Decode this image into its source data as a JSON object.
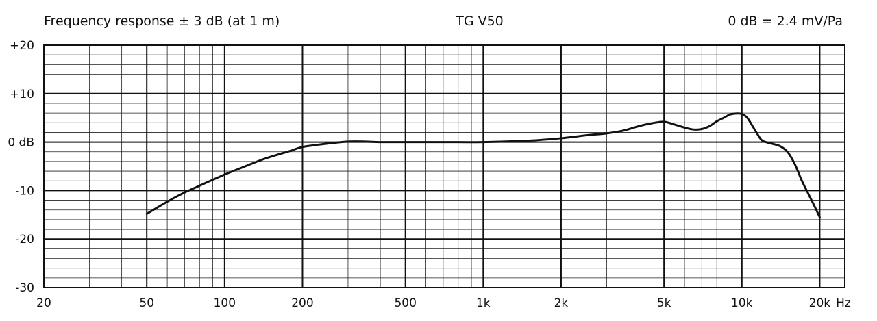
{
  "header": {
    "left": "Frequency response ± 3 dB (at 1 m)",
    "center": "TG V50",
    "right": "0 dB = 2.4 mV/Pa"
  },
  "chart_data": {
    "type": "line",
    "title": "TG V50",
    "xscale": "log",
    "xlim": [
      20,
      25000
    ],
    "ylim": [
      -30,
      20
    ],
    "grid": true,
    "x_ticks": [
      {
        "value": 20,
        "label": "20"
      },
      {
        "value": 50,
        "label": "50"
      },
      {
        "value": 100,
        "label": "100"
      },
      {
        "value": 200,
        "label": "200"
      },
      {
        "value": 500,
        "label": "500"
      },
      {
        "value": 1000,
        "label": "1k"
      },
      {
        "value": 2000,
        "label": "2k"
      },
      {
        "value": 5000,
        "label": "5k"
      },
      {
        "value": 10000,
        "label": "10k"
      },
      {
        "value": 20000,
        "label": "20k"
      }
    ],
    "x_unit_label": "Hz",
    "y_ticks": [
      {
        "value": 20,
        "label": "+20"
      },
      {
        "value": 10,
        "label": "+10"
      },
      {
        "value": 0,
        "label": "0 dB"
      },
      {
        "value": -10,
        "label": "-10"
      },
      {
        "value": -20,
        "label": "-20"
      },
      {
        "value": -30,
        "label": "-30"
      }
    ],
    "series": [
      {
        "color": "#111111",
        "points": [
          [
            50,
            -14.8
          ],
          [
            60,
            -12.3
          ],
          [
            70,
            -10.4
          ],
          [
            80,
            -9.0
          ],
          [
            100,
            -6.7
          ],
          [
            120,
            -5.0
          ],
          [
            140,
            -3.6
          ],
          [
            160,
            -2.6
          ],
          [
            180,
            -1.8
          ],
          [
            200,
            -1.0
          ],
          [
            250,
            -0.3
          ],
          [
            300,
            0.1
          ],
          [
            350,
            0.1
          ],
          [
            400,
            0.0
          ],
          [
            500,
            0.0
          ],
          [
            700,
            0.0
          ],
          [
            1000,
            0.0
          ],
          [
            1500,
            0.3
          ],
          [
            2000,
            0.8
          ],
          [
            2500,
            1.4
          ],
          [
            3000,
            1.8
          ],
          [
            3500,
            2.4
          ],
          [
            4000,
            3.3
          ],
          [
            4500,
            3.9
          ],
          [
            5000,
            4.2
          ],
          [
            5500,
            3.6
          ],
          [
            6000,
            3.0
          ],
          [
            6500,
            2.6
          ],
          [
            7000,
            2.7
          ],
          [
            7500,
            3.3
          ],
          [
            8000,
            4.3
          ],
          [
            8500,
            5.0
          ],
          [
            9000,
            5.7
          ],
          [
            9500,
            5.9
          ],
          [
            10000,
            5.8
          ],
          [
            10500,
            5.0
          ],
          [
            11000,
            3.3
          ],
          [
            11500,
            1.6
          ],
          [
            12000,
            0.3
          ],
          [
            13000,
            -0.3
          ],
          [
            14000,
            -0.8
          ],
          [
            15000,
            -2.0
          ],
          [
            16000,
            -4.5
          ],
          [
            17000,
            -7.8
          ],
          [
            18000,
            -10.5
          ],
          [
            19000,
            -13.0
          ],
          [
            20000,
            -15.5
          ]
        ]
      }
    ]
  }
}
